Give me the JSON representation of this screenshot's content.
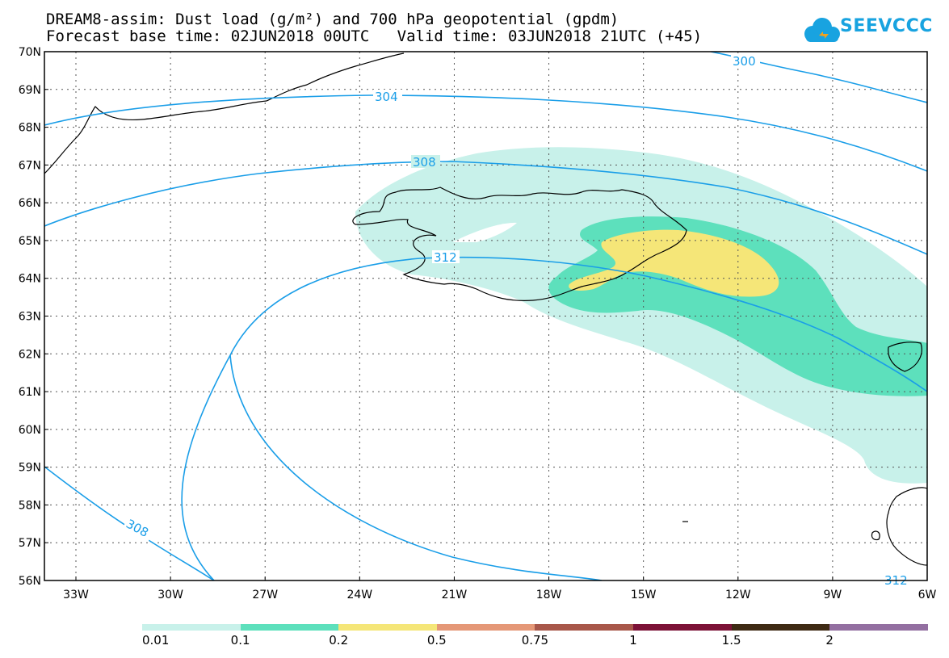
{
  "header": {
    "title_line1": "DREAM8-assim: Dust load (g/m²) and 700 hPa geopotential (gpdm)",
    "title_line2": "Forecast base time: 02JUN2018 00UTC   Valid time: 03JUN2018 21UTC (+45)"
  },
  "logo": {
    "text": "SEEVCCC",
    "icon": "cloud-icon",
    "color": "#18a3e0"
  },
  "map": {
    "lat_labels": [
      "70N",
      "69N",
      "68N",
      "67N",
      "66N",
      "65N",
      "64N",
      "63N",
      "62N",
      "61N",
      "60N",
      "59N",
      "58N",
      "57N",
      "56N"
    ],
    "lon_labels": [
      "33W",
      "30W",
      "27W",
      "24W",
      "21W",
      "18W",
      "15W",
      "12W",
      "9W",
      "6W"
    ],
    "contour_labels": [
      "300",
      "304",
      "308",
      "312",
      "308",
      "312"
    ],
    "contour_color": "#1a9ee8",
    "fill_colors": {
      "level_001": "#c8f1ea",
      "level_01": "#5de0bc",
      "level_02": "#f5e678"
    }
  },
  "colorbar": {
    "labels": [
      "0.01",
      "0.1",
      "0.2",
      "0.5",
      "0.75",
      "1",
      "1.5",
      "2"
    ],
    "colors": [
      "#c8f1ea",
      "#5de0bc",
      "#f5e678",
      "#e59877",
      "#a8574a",
      "#7c1237",
      "#3e2a14",
      "#936fa1"
    ]
  }
}
